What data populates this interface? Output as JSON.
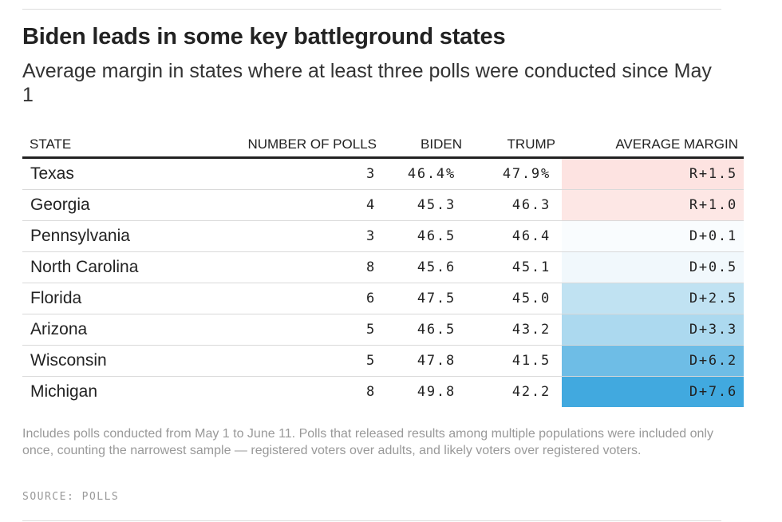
{
  "title": "Biden leads in some key battleground states",
  "subtitle": "Average margin in states where at least three polls were conducted since May 1",
  "footnote": "Includes polls conducted from May 1 to June 11. Polls that released results among multiple populations were included only once, counting the narrowest sample — registered voters over adults, and likely voters over registered voters.",
  "source": "SOURCE: POLLS",
  "chart_data": {
    "type": "table",
    "columns": [
      "STATE",
      "NUMBER OF POLLS",
      "BIDEN",
      "TRUMP",
      "AVERAGE MARGIN"
    ],
    "rows": [
      {
        "state": "Texas",
        "polls": "3",
        "biden": "46.4%",
        "trump": "47.9%",
        "margin": "R+1.5",
        "margin_value": -1.5,
        "color": "#fde3e1"
      },
      {
        "state": "Georgia",
        "polls": "4",
        "biden": "45.3",
        "trump": "46.3",
        "margin": "R+1.0",
        "margin_value": -1.0,
        "color": "#fde7e5"
      },
      {
        "state": "Pennsylvania",
        "polls": "3",
        "biden": "46.5",
        "trump": "46.4",
        "margin": "D+0.1",
        "margin_value": 0.1,
        "color": "#f9fcfe"
      },
      {
        "state": "North Carolina",
        "polls": "8",
        "biden": "45.6",
        "trump": "45.1",
        "margin": "D+0.5",
        "margin_value": 0.5,
        "color": "#f1f8fc"
      },
      {
        "state": "Florida",
        "polls": "6",
        "biden": "47.5",
        "trump": "45.0",
        "margin": "D+2.5",
        "margin_value": 2.5,
        "color": "#c0e2f2"
      },
      {
        "state": "Arizona",
        "polls": "5",
        "biden": "46.5",
        "trump": "43.2",
        "margin": "D+3.3",
        "margin_value": 3.3,
        "color": "#acd9ef"
      },
      {
        "state": "Wisconsin",
        "polls": "5",
        "biden": "47.8",
        "trump": "41.5",
        "margin": "D+6.2",
        "margin_value": 6.2,
        "color": "#6ebde6"
      },
      {
        "state": "Michigan",
        "polls": "8",
        "biden": "49.8",
        "trump": "42.2",
        "margin": "D+7.6",
        "margin_value": 7.6,
        "color": "#41a9df"
      }
    ]
  }
}
